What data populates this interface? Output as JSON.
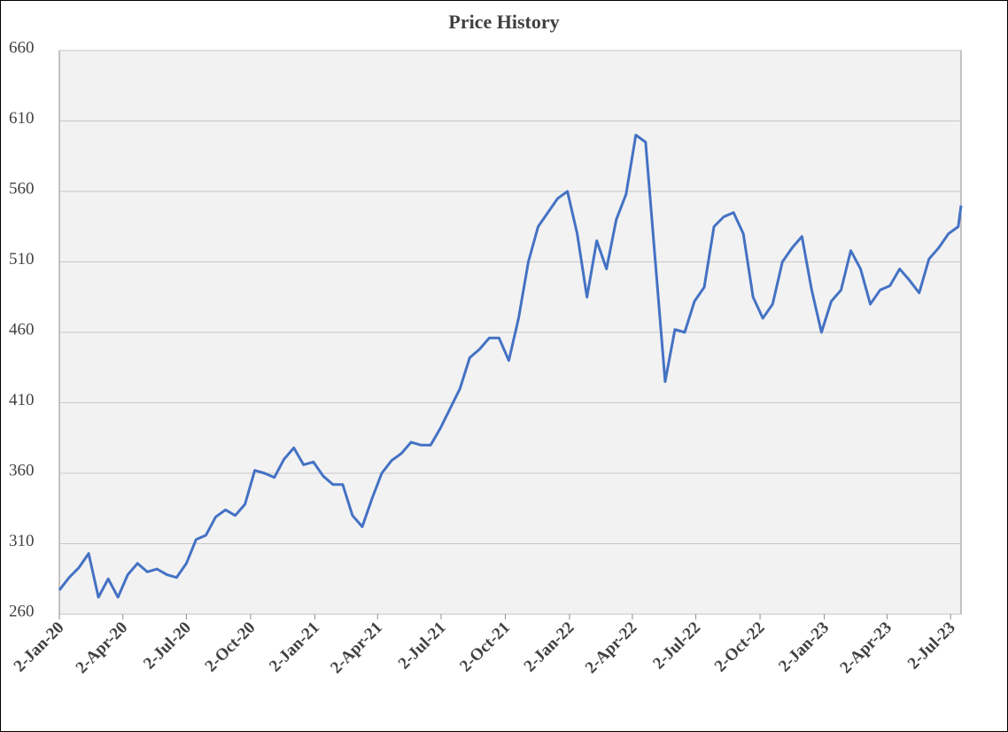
{
  "chart_data": {
    "type": "line",
    "title": "Price History",
    "x": [
      "2020-01-02",
      "2020-01-16",
      "2020-01-30",
      "2020-02-13",
      "2020-02-27",
      "2020-03-12",
      "2020-03-26",
      "2020-04-09",
      "2020-04-23",
      "2020-05-07",
      "2020-05-21",
      "2020-06-04",
      "2020-06-18",
      "2020-07-02",
      "2020-07-16",
      "2020-07-30",
      "2020-08-13",
      "2020-08-27",
      "2020-09-10",
      "2020-09-24",
      "2020-10-08",
      "2020-10-22",
      "2020-11-05",
      "2020-11-19",
      "2020-12-03",
      "2020-12-17",
      "2020-12-31",
      "2021-01-14",
      "2021-01-28",
      "2021-02-11",
      "2021-02-25",
      "2021-03-11",
      "2021-03-25",
      "2021-04-08",
      "2021-04-22",
      "2021-05-06",
      "2021-05-20",
      "2021-06-03",
      "2021-06-17",
      "2021-07-01",
      "2021-07-15",
      "2021-07-29",
      "2021-08-12",
      "2021-08-26",
      "2021-09-09",
      "2021-09-23",
      "2021-10-07",
      "2021-10-21",
      "2021-11-04",
      "2021-11-18",
      "2021-12-02",
      "2021-12-16",
      "2021-12-30",
      "2022-01-13",
      "2022-01-27",
      "2022-02-10",
      "2022-02-24",
      "2022-03-10",
      "2022-03-24",
      "2022-04-07",
      "2022-04-21",
      "2022-05-05",
      "2022-05-19",
      "2022-06-02",
      "2022-06-16",
      "2022-06-30",
      "2022-07-14",
      "2022-07-28",
      "2022-08-11",
      "2022-08-25",
      "2022-09-08",
      "2022-09-22",
      "2022-10-06",
      "2022-10-20",
      "2022-11-03",
      "2022-11-17",
      "2022-12-01",
      "2022-12-15",
      "2022-12-29",
      "2023-01-12",
      "2023-01-26",
      "2023-02-09",
      "2023-02-23",
      "2023-03-09",
      "2023-03-23",
      "2023-04-06",
      "2023-04-20",
      "2023-05-04",
      "2023-05-18",
      "2023-06-01",
      "2023-06-15",
      "2023-06-29",
      "2023-07-13",
      "2023-07-17"
    ],
    "series": [
      {
        "name": "Price",
        "color": "#4472c4",
        "values": [
          277,
          286,
          293,
          303,
          272,
          285,
          272,
          288,
          296,
          290,
          292,
          288,
          286,
          296,
          313,
          316,
          329,
          334,
          330,
          338,
          362,
          360,
          357,
          370,
          378,
          366,
          368,
          358,
          352,
          352,
          330,
          322,
          342,
          360,
          369,
          374,
          382,
          380,
          380,
          392,
          406,
          420,
          442,
          448,
          456,
          456,
          440,
          470,
          510,
          535,
          545,
          555,
          560,
          530,
          485,
          525,
          505,
          540,
          558,
          600,
          595,
          510,
          425,
          462,
          460,
          482,
          492,
          535,
          542,
          545,
          530,
          485,
          470,
          480,
          510,
          520,
          528,
          490,
          460,
          482,
          490,
          518,
          505,
          480,
          490,
          493,
          505,
          497,
          488,
          512,
          520,
          530,
          535,
          550
        ]
      }
    ],
    "xlim": [
      "2020-01-02",
      "2023-07-17"
    ],
    "xticks": [
      {
        "value": "2020-01-02",
        "label": "2-Jan-20"
      },
      {
        "value": "2020-04-02",
        "label": "2-Apr-20"
      },
      {
        "value": "2020-07-02",
        "label": "2-Jul-20"
      },
      {
        "value": "2020-10-02",
        "label": "2-Oct-20"
      },
      {
        "value": "2021-01-02",
        "label": "2-Jan-21"
      },
      {
        "value": "2021-04-02",
        "label": "2-Apr-21"
      },
      {
        "value": "2021-07-02",
        "label": "2-Jul-21"
      },
      {
        "value": "2021-10-02",
        "label": "2-Oct-21"
      },
      {
        "value": "2022-01-02",
        "label": "2-Jan-22"
      },
      {
        "value": "2022-04-02",
        "label": "2-Apr-22"
      },
      {
        "value": "2022-07-02",
        "label": "2-Jul-22"
      },
      {
        "value": "2022-10-02",
        "label": "2-Oct-22"
      },
      {
        "value": "2023-01-02",
        "label": "2-Jan-23"
      },
      {
        "value": "2023-04-02",
        "label": "2-Apr-23"
      },
      {
        "value": "2023-07-02",
        "label": "2-Jul-23"
      }
    ],
    "ylim": [
      260,
      660
    ],
    "yticks": [
      260,
      310,
      360,
      410,
      460,
      510,
      560,
      610,
      660
    ],
    "grid": true
  }
}
